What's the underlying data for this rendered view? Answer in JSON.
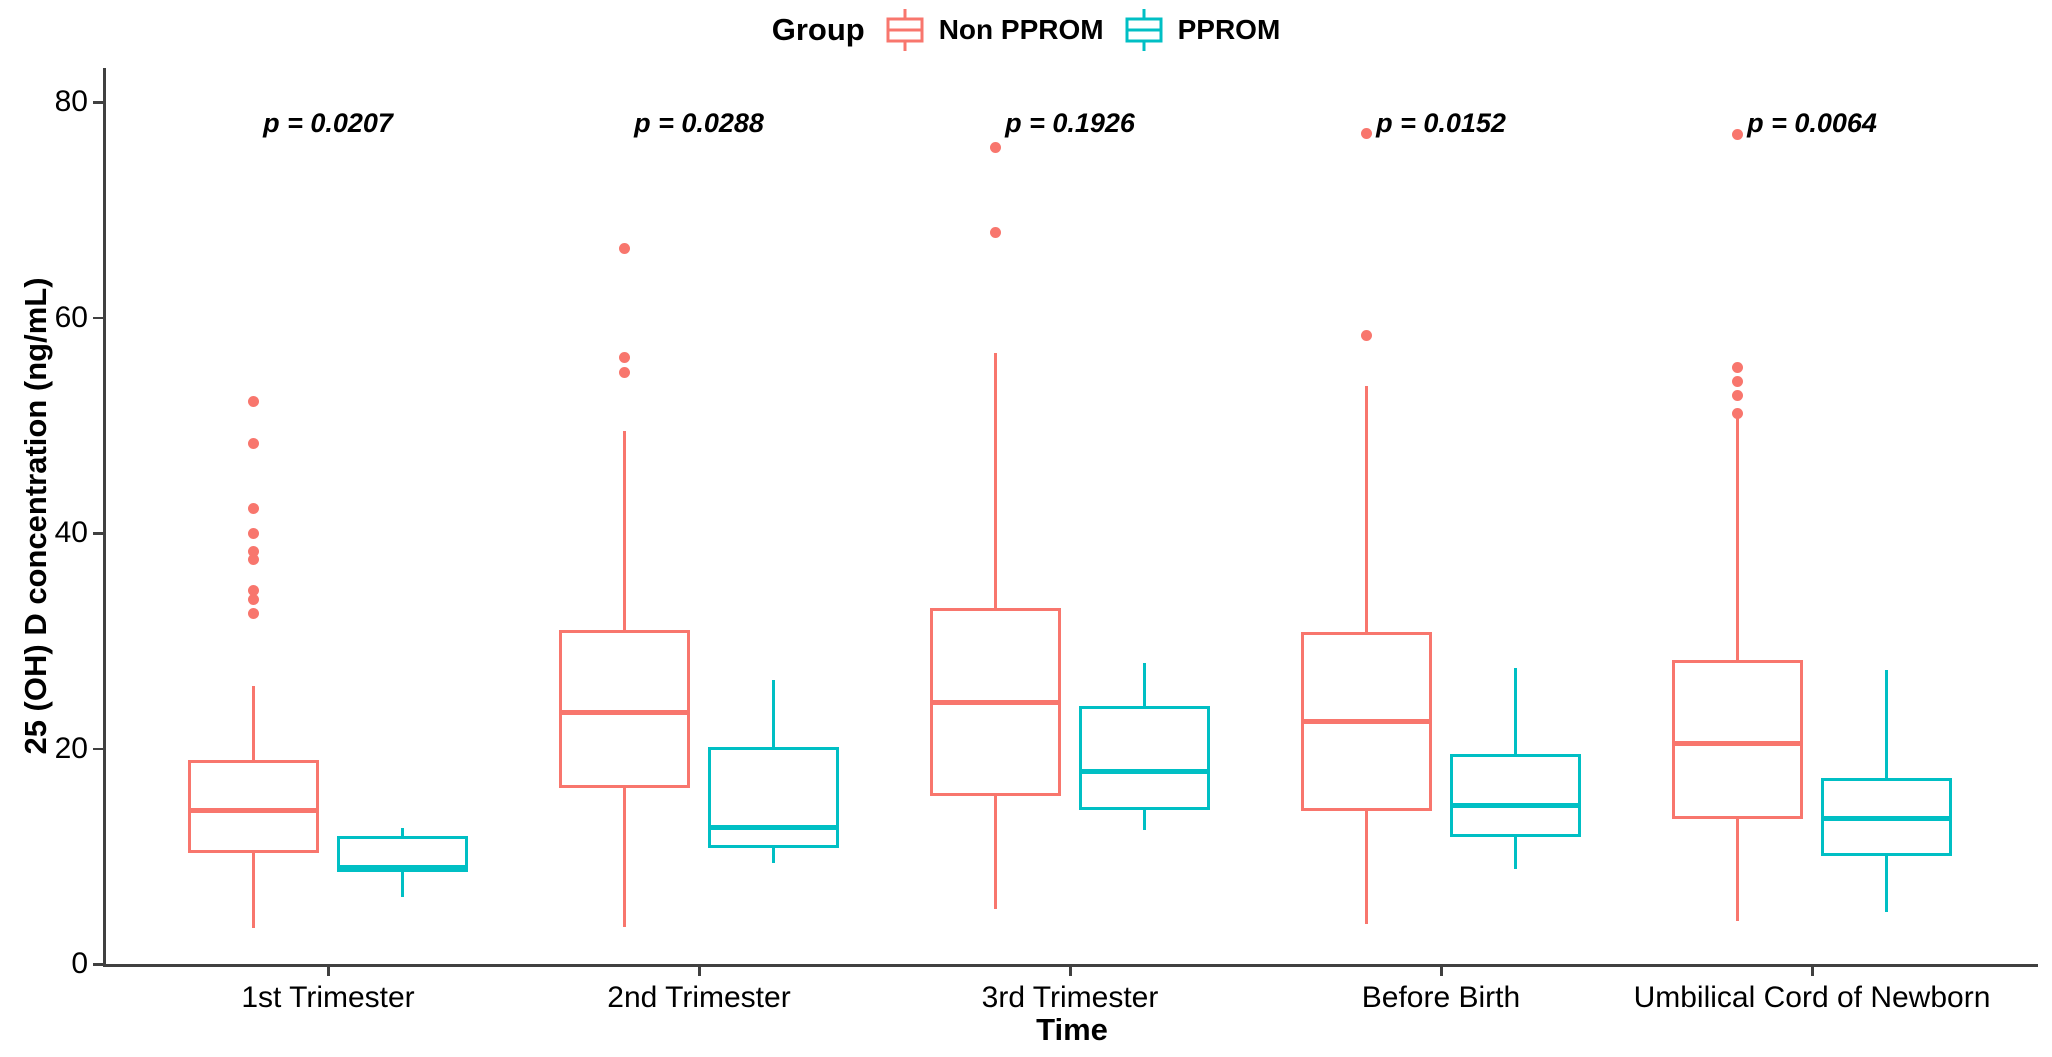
{
  "legend": {
    "title": "Group"
  },
  "axes": {
    "y": {
      "title": "25 (OH) D concentration (ng/mL)"
    },
    "x": {
      "title": "Time"
    }
  },
  "chart_data": {
    "type": "boxplot",
    "title": "",
    "xlabel": "Time",
    "ylabel": "25 (OH) D concentration (ng/mL)",
    "ylim": [
      0,
      80
    ],
    "y_ticks": [
      0,
      20,
      40,
      60,
      80
    ],
    "grid": false,
    "legend_position": "top",
    "categories": [
      "1st Trimester",
      "2nd Trimester",
      "3rd Trimester",
      "Before Birth",
      "Umbilical Cord of Newborn"
    ],
    "series": [
      {
        "name": "Non PPROM",
        "color": "#F8766D",
        "boxes": [
          {
            "whisker_low": 3.3,
            "q1": 10.3,
            "median": 14.2,
            "q3": 18.9,
            "whisker_high": 25.8,
            "outliers": [
              32.5,
              33.8,
              34.7,
              37.5,
              38.3,
              40.0,
              42.3,
              48.3,
              52.2
            ]
          },
          {
            "whisker_low": 3.4,
            "q1": 16.3,
            "median": 23.3,
            "q3": 31.0,
            "whisker_high": 49.5,
            "outliers": [
              54.9,
              56.3,
              66.4
            ]
          },
          {
            "whisker_low": 5.1,
            "q1": 15.6,
            "median": 24.3,
            "q3": 33.0,
            "whisker_high": 56.7,
            "outliers": [
              67.9,
              75.8
            ]
          },
          {
            "whisker_low": 3.7,
            "q1": 14.2,
            "median": 22.5,
            "q3": 30.8,
            "whisker_high": 53.6,
            "outliers": [
              58.3,
              77.1
            ]
          },
          {
            "whisker_low": 4.0,
            "q1": 13.5,
            "median": 20.5,
            "q3": 28.2,
            "whisker_high": 50.7,
            "outliers": [
              51.1,
              52.8,
              54.1,
              55.4,
              77.0
            ]
          }
        ]
      },
      {
        "name": "PPROM",
        "color": "#00BFC4",
        "boxes": [
          {
            "whisker_low": 6.2,
            "q1": 8.5,
            "median": 9.0,
            "q3": 11.9,
            "whisker_high": 12.6,
            "outliers": []
          },
          {
            "whisker_low": 9.4,
            "q1": 10.8,
            "median": 12.7,
            "q3": 20.1,
            "whisker_high": 26.4,
            "outliers": []
          },
          {
            "whisker_low": 12.4,
            "q1": 14.3,
            "median": 17.9,
            "q3": 23.9,
            "whisker_high": 27.9,
            "outliers": []
          },
          {
            "whisker_low": 8.8,
            "q1": 11.8,
            "median": 14.7,
            "q3": 19.5,
            "whisker_high": 27.5,
            "outliers": []
          },
          {
            "whisker_low": 4.8,
            "q1": 10.0,
            "median": 13.5,
            "q3": 17.3,
            "whisker_high": 27.3,
            "outliers": []
          }
        ]
      }
    ],
    "annotations": [
      {
        "label": "p = 0.0207",
        "category_index": 0,
        "y": 78
      },
      {
        "label": "p = 0.0288",
        "category_index": 1,
        "y": 78
      },
      {
        "label": "p = 0.1926",
        "category_index": 2,
        "y": 78
      },
      {
        "label": "p = 0.0152",
        "category_index": 3,
        "y": 78
      },
      {
        "label": "p = 0.0064",
        "category_index": 4,
        "y": 78
      }
    ]
  }
}
